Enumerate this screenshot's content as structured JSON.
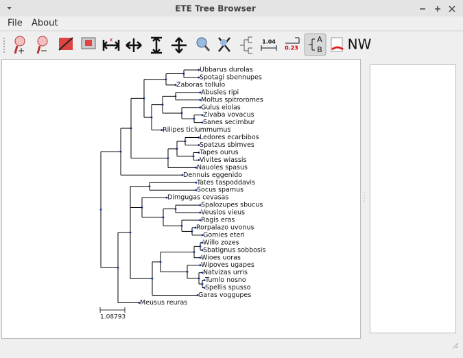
{
  "window": {
    "title": "ETE Tree Browser"
  },
  "menu": [
    "File",
    "About"
  ],
  "toolbar": {
    "labels": [
      "1.04",
      "0.23",
      "A",
      "B",
      "NW"
    ]
  },
  "tree": {
    "leaves": [
      "Ubbarus durolas",
      "Spotagi sbennupes",
      "Zaboras tollulo",
      "Abusles ripi",
      "Moltus spitroromes",
      "Gulus eiolas",
      "Zivaba vovacus",
      "Sanes secimbur",
      "Rilipes ticlummumus",
      "Ledores ecarbibos",
      "Spatzus sbimves",
      "Tapes ourus",
      "Vivites wiassis",
      "Nauoles spasus",
      "Dennuis eggenido",
      "Tates taspoddavis",
      "Socus spamus",
      "Dimgugas cevasas",
      "Spalozupes sbucus",
      "Veuslos vieus",
      "Ragis eras",
      "Rorpalazo uvonus",
      "Gomies eteri",
      "Willo zozes",
      "Sbatignus sobbosis",
      "Wioes uoras",
      "Wipoves ugapes",
      "Natvizas urris",
      "Tumlo nosno",
      "Spellis spusso",
      "Garas voggupes",
      "Meusus reuras"
    ],
    "scale_label": "1.08793"
  }
}
